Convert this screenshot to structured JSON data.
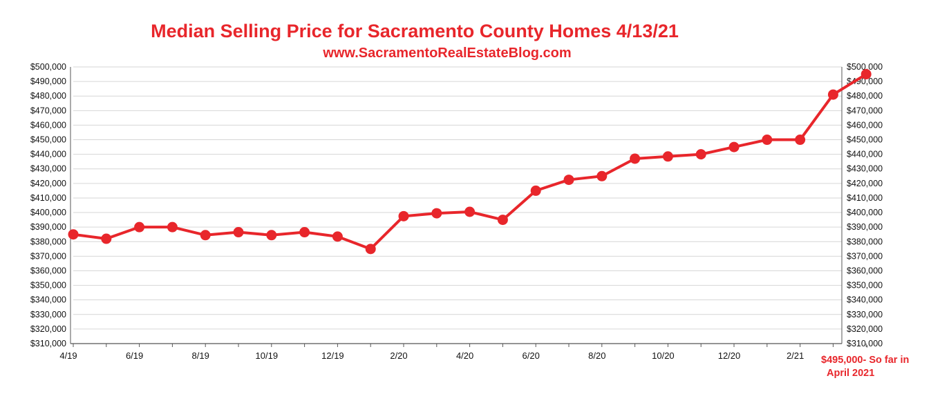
{
  "title": "Median Selling Price for Sacramento County Homes 4/13/21",
  "subtitle": "www.SacramentoRealEstateBlog.com",
  "annotation": {
    "line1": "$495,000- So far in",
    "line2": "April 2021"
  },
  "colors": {
    "series": "#e8262b",
    "grid": "#d6d6d6",
    "text": "#111111"
  },
  "chart_data": {
    "type": "line",
    "x": [
      "4/19",
      "5/19",
      "6/19",
      "7/19",
      "8/19",
      "9/19",
      "10/19",
      "11/19",
      "12/19",
      "1/20",
      "2/20",
      "3/20",
      "4/20",
      "5/20",
      "6/20",
      "7/20",
      "8/20",
      "9/20",
      "10/20",
      "11/20",
      "12/20",
      "1/21",
      "2/21",
      "3/21",
      "4/21"
    ],
    "x_tick_labels": [
      "4/19",
      "6/19",
      "8/19",
      "10/19",
      "12/19",
      "2/20",
      "4/20",
      "6/20",
      "8/20",
      "10/20",
      "12/20",
      "2/21"
    ],
    "series": [
      {
        "values": [
          385000,
          382000,
          390000,
          390000,
          384500,
          386500,
          384500,
          386500,
          383500,
          375000,
          397500,
          399500,
          400500,
          395000,
          415000,
          422500,
          425000,
          437000,
          438500,
          440000,
          445000,
          450000,
          450000,
          481000,
          495000
        ]
      }
    ],
    "ylim": [
      310000,
      500000
    ],
    "y_tick_step": 10000,
    "y_tick_labels": [
      "$310,000",
      "$320,000",
      "$330,000",
      "$340,000",
      "$350,000",
      "$360,000",
      "$370,000",
      "$380,000",
      "$390,000",
      "$400,000",
      "$410,000",
      "$420,000",
      "$430,000",
      "$440,000",
      "$450,000",
      "$460,000",
      "$470,000",
      "$480,000",
      "$490,000",
      "$500,000"
    ],
    "y_axes": [
      "left",
      "right"
    ],
    "grid": true,
    "legend": false,
    "markers": true
  }
}
